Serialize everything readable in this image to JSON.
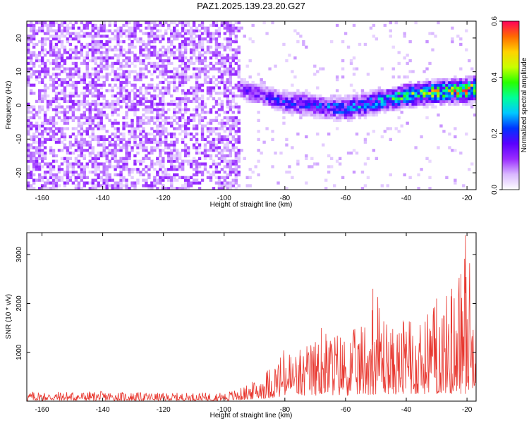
{
  "title": "PAZ1.2025.139.23.20.G27",
  "chart_data": [
    {
      "type": "heatmap",
      "title": "PAZ1.2025.139.23.20.G27",
      "xlabel": "Height of straight line (km)",
      "ylabel": "Frequency (Hz)",
      "xlim": [
        -165,
        -17
      ],
      "ylim": [
        -25,
        25
      ],
      "x_ticks": [
        -160,
        -140,
        -120,
        -100,
        -80,
        -60,
        -40,
        -20
      ],
      "y_ticks": [
        -20,
        -10,
        0,
        10,
        20
      ],
      "colorbar": {
        "label": "Normalized spectral amplitude",
        "range": [
          0.0,
          0.6
        ],
        "ticks": [
          0.0,
          0.2,
          0.4,
          0.6
        ],
        "colors": [
          "#ffffff",
          "#d9b8ff",
          "#9a2cff",
          "#5a00ff",
          "#0033ff",
          "#00c8ff",
          "#00ff9a",
          "#28ff00",
          "#c8ff00",
          "#ffd200",
          "#ff6a00",
          "#ff005a"
        ]
      },
      "signal_track": {
        "onset_x": -95,
        "x": [
          -95,
          -80,
          -70,
          -60,
          -50,
          -40,
          -30,
          -20,
          -17
        ],
        "center_frequency": [
          5,
          1,
          0,
          -1,
          1,
          3,
          4,
          4.5,
          5
        ],
        "peak_amplitude": [
          0.15,
          0.22,
          0.25,
          0.28,
          0.33,
          0.42,
          0.5,
          0.56,
          0.58
        ]
      },
      "background_noise": {
        "x_range": [
          -165,
          -95
        ],
        "amplitude_range": [
          0.02,
          0.12
        ]
      }
    },
    {
      "type": "line",
      "xlabel": "Height of straight line (km)",
      "ylabel": "SNR (10 * v/v)",
      "xlim": [
        -165,
        -17
      ],
      "ylim": [
        0,
        3450
      ],
      "x_ticks": [
        -160,
        -140,
        -120,
        -100,
        -80,
        -60,
        -40,
        -20
      ],
      "y_ticks": [
        1000,
        2000,
        3000
      ],
      "color": "#e8372f",
      "envelope": {
        "x": [
          -165,
          -140,
          -120,
          -100,
          -95,
          -90,
          -85,
          -80,
          -75,
          -70,
          -65,
          -60,
          -55,
          -50,
          -45,
          -40,
          -35,
          -30,
          -25,
          -20,
          -17
        ],
        "max": [
          200,
          200,
          170,
          180,
          260,
          420,
          720,
          1100,
          1050,
          1300,
          1500,
          1400,
          1550,
          2300,
          1500,
          1650,
          1550,
          2100,
          2300,
          3400,
          2000
        ],
        "min": [
          10,
          10,
          10,
          10,
          20,
          40,
          60,
          80,
          90,
          110,
          120,
          110,
          120,
          140,
          140,
          130,
          140,
          150,
          160,
          200,
          300
        ]
      }
    }
  ]
}
